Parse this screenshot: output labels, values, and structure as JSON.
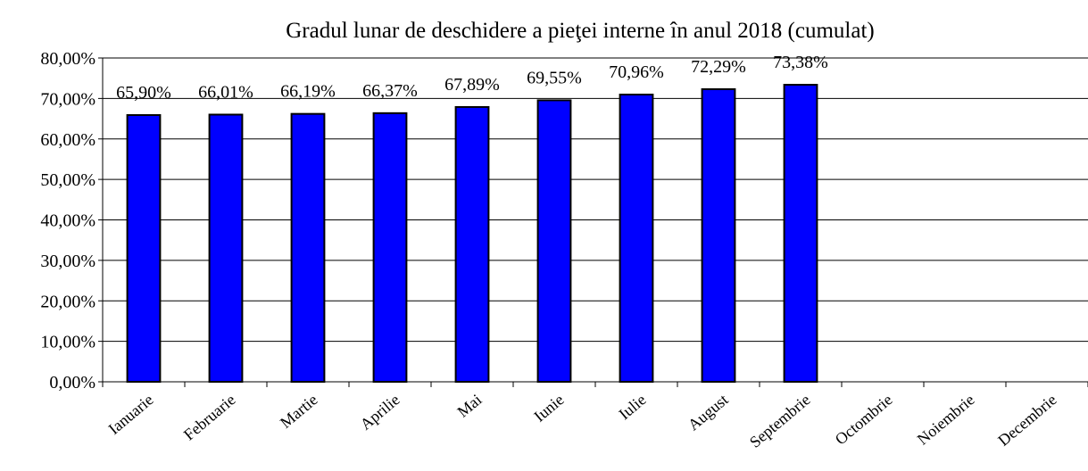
{
  "chart_data": {
    "type": "bar",
    "title": "Gradul lunar de deschidere a pieţei interne în anul 2018 (cumulat)",
    "categories": [
      "Ianuarie",
      "Februarie",
      "Martie",
      "Aprilie",
      "Mai",
      "Iunie",
      "Iulie",
      "August",
      "Septembrie",
      "Octombrie",
      "Noiembrie",
      "Decembrie"
    ],
    "values": [
      65.9,
      66.01,
      66.19,
      66.37,
      67.89,
      69.55,
      70.96,
      72.29,
      73.38,
      null,
      null,
      null
    ],
    "value_labels": [
      "65,90%",
      "66,01%",
      "66,19%",
      "66,37%",
      "67,89%",
      "69,55%",
      "70,96%",
      "72,29%",
      "73,38%",
      null,
      null,
      null
    ],
    "color": "#0000ff",
    "ylim": [
      0,
      80
    ],
    "yticks": [
      {
        "value": 0,
        "label": "0,00%"
      },
      {
        "value": 10,
        "label": "10,00%"
      },
      {
        "value": 20,
        "label": "20,00%"
      },
      {
        "value": 30,
        "label": "30,00%"
      },
      {
        "value": 40,
        "label": "40,00%"
      },
      {
        "value": 50,
        "label": "50,00%"
      },
      {
        "value": 60,
        "label": "60,00%"
      },
      {
        "value": 70,
        "label": "70,00%"
      },
      {
        "value": 80,
        "label": "80,00%"
      }
    ],
    "grid": true
  }
}
